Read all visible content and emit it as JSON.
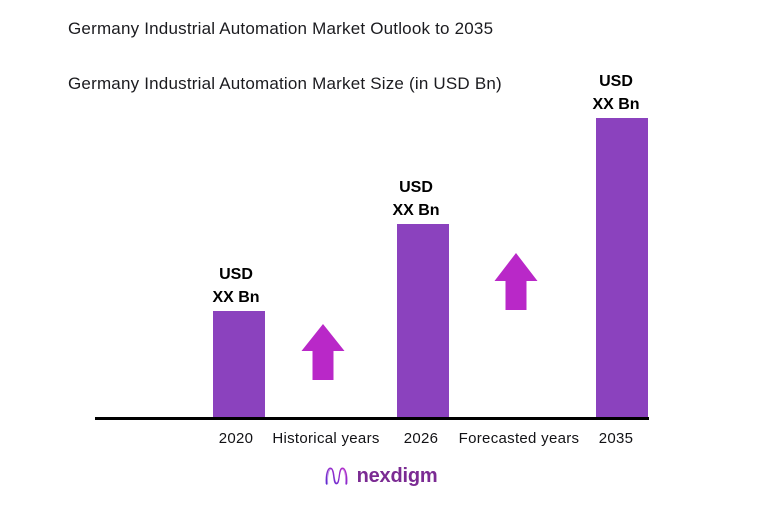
{
  "page": {
    "background": "#ffffff"
  },
  "header": {
    "title": "Germany Industrial Automation Market Outlook to 2035",
    "subtitle": "Germany Industrial Automation Market Size (in USD Bn)"
  },
  "chart_data": {
    "type": "bar",
    "title": "Germany Industrial Automation Market Outlook to 2035",
    "subtitle": "Germany Industrial Automation Market Size (in USD Bn)",
    "categories": [
      "2020",
      "2026",
      "2035"
    ],
    "values": [
      "XX",
      "XX",
      "XX"
    ],
    "unit": "USD Bn",
    "bars": [
      {
        "category": "2020",
        "label_line1": "USD",
        "label_line2": "XX Bn",
        "relative_height_pct": 36
      },
      {
        "category": "2026",
        "label_line1": "USD",
        "label_line2": "XX Bn",
        "relative_height_pct": 65
      },
      {
        "category": "2035",
        "label_line1": "USD",
        "label_line2": "XX Bn",
        "relative_height_pct": 100
      }
    ],
    "annotations": [
      {
        "text": "Historical years",
        "between": [
          "2020",
          "2026"
        ]
      },
      {
        "text": "Forecasted years",
        "between": [
          "2026",
          "2035"
        ]
      }
    ],
    "grid": false,
    "legend": null,
    "xlabel": "",
    "ylabel": "",
    "colors": {
      "bar": "#8B42BE",
      "arrow": "#B928C8",
      "axis": "#000000",
      "text": "#1B1B1F"
    }
  },
  "footer": {
    "brand": "nexdigm",
    "logo_icon": "nexdigm-n-wave-icon"
  }
}
